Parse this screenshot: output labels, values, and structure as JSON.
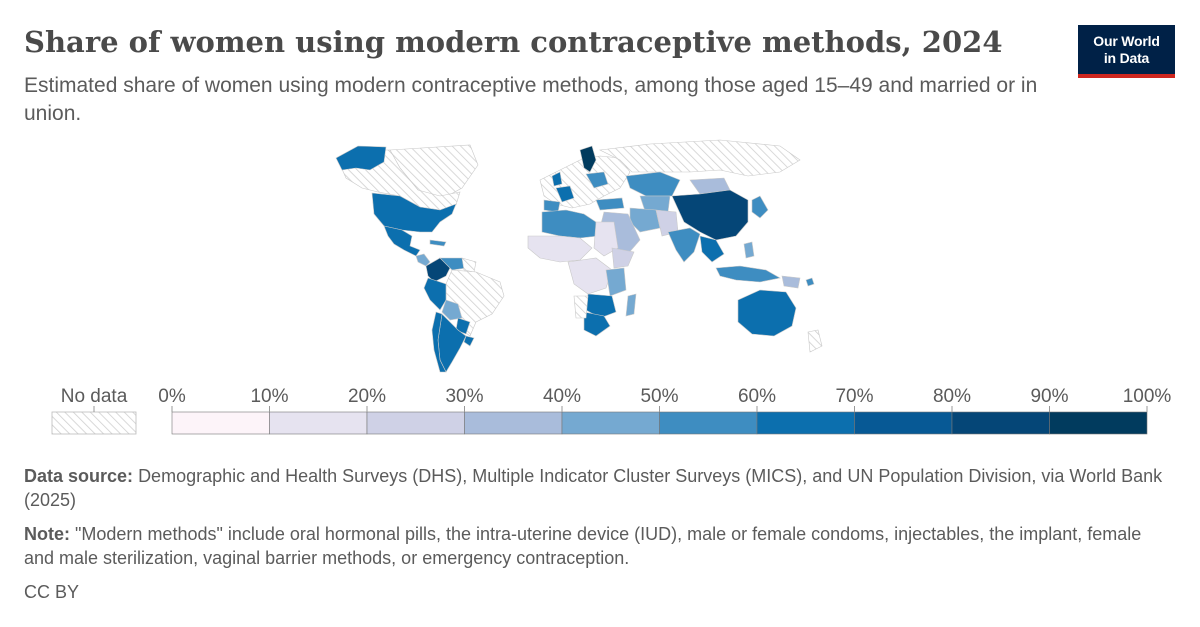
{
  "header": {
    "title": "Share of women using modern contraceptive methods, 2024",
    "subtitle": "Estimated share of women using modern contraceptive methods, among those aged 15–49 and married or in union."
  },
  "logo": {
    "line1": "Our World",
    "line2": "in Data"
  },
  "legend": {
    "no_data_label": "No data",
    "ticks": [
      "0%",
      "10%",
      "20%",
      "30%",
      "40%",
      "50%",
      "60%",
      "70%",
      "80%",
      "90%",
      "100%"
    ],
    "colors": [
      "#fdf4f9",
      "#e6e3f0",
      "#cfd1e6",
      "#a9bcdb",
      "#75a9d1",
      "#3e8dc1",
      "#0c6fae",
      "#075995",
      "#054677",
      "#013b5e"
    ]
  },
  "footer": {
    "source_label": "Data source:",
    "source_text": "Demographic and Health Surveys (DHS), Multiple Indicator Cluster Surveys (MICS), and UN Population Division, via World Bank (2025)",
    "note_label": "Note:",
    "note_text": "\"Modern methods\" include oral hormonal pills, the intra-uterine device (IUD), male or female condoms, injectables, the implant, female and male sterilization, vaginal barrier methods, or emergency contraception.",
    "license": "CC BY"
  },
  "map_colors": {
    "no_data": "#ffffff",
    "hatch": "#d6d6d6",
    "border": "#ffffff"
  }
}
